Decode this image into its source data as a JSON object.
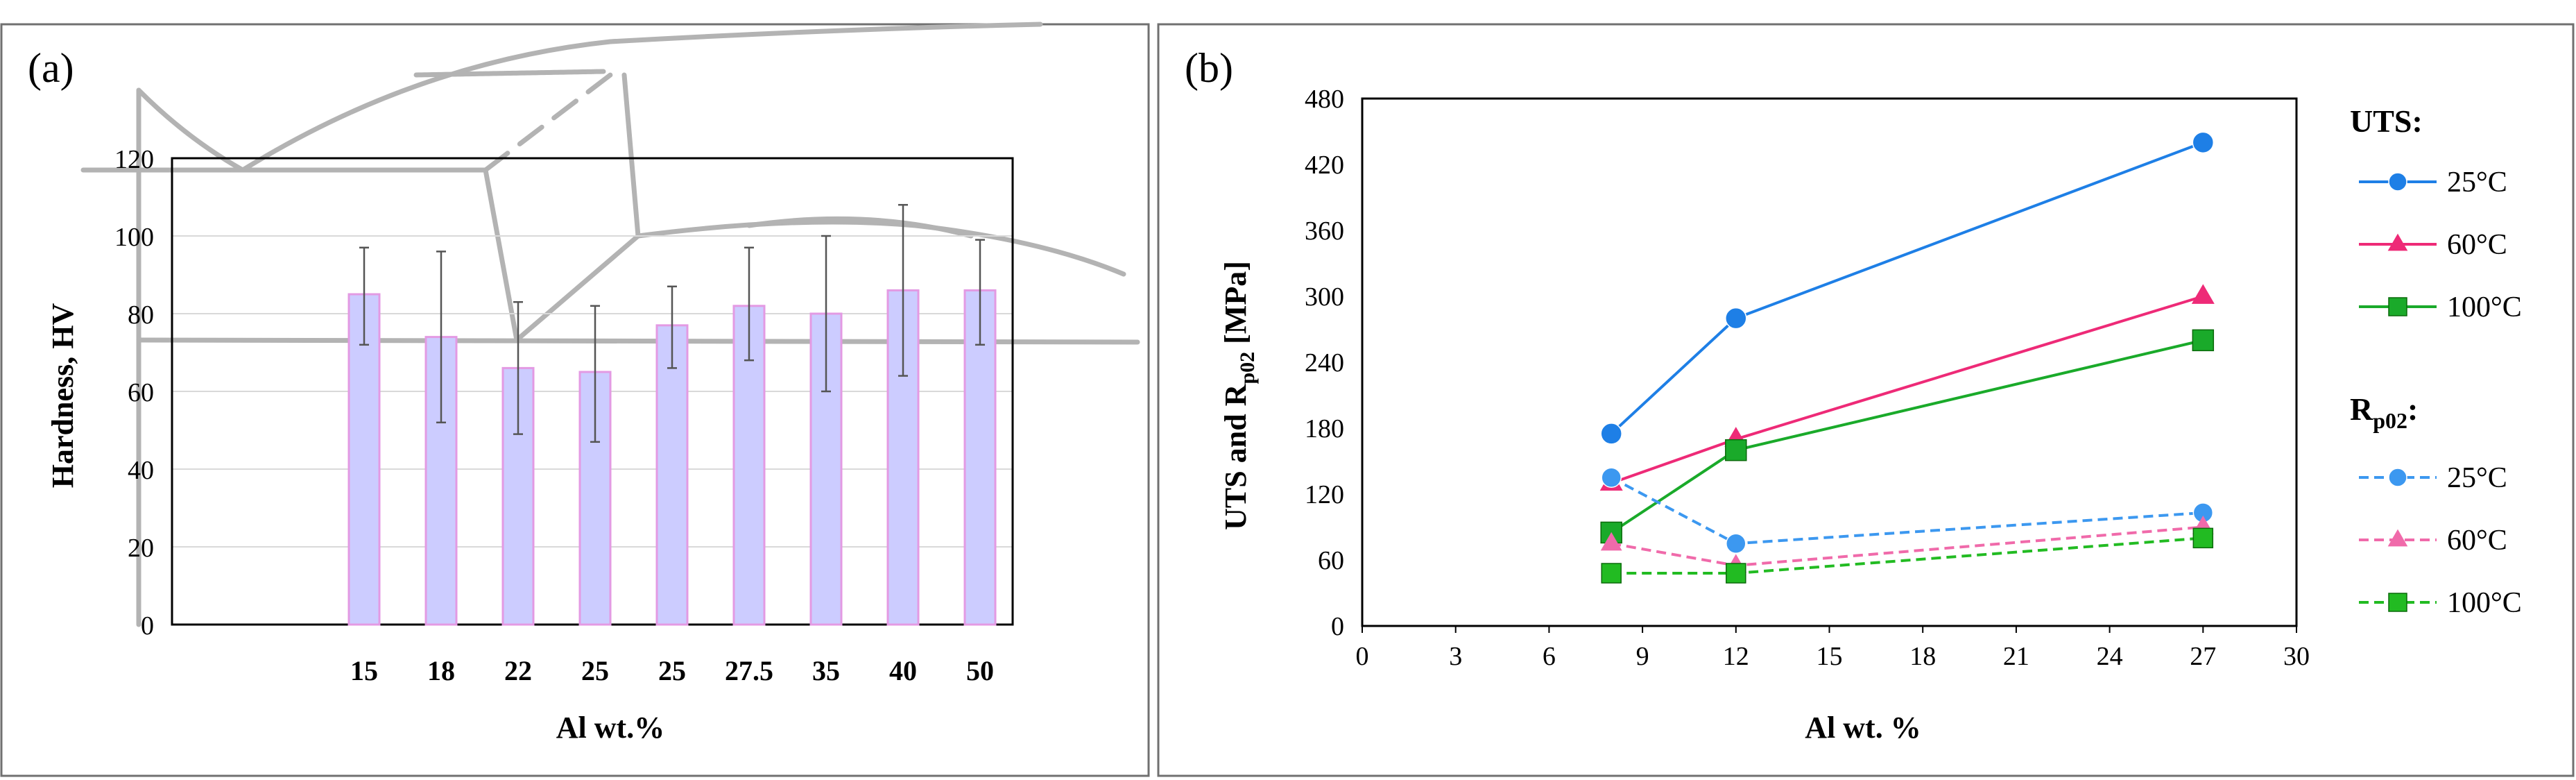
{
  "chart_data": [
    {
      "panel_label": "(a)",
      "type": "bar",
      "ylabel": "Hardness, HV",
      "xlabel": "Al wt.%",
      "ylim": [
        0,
        120
      ],
      "yticks": [
        0,
        20,
        40,
        60,
        80,
        100,
        120
      ],
      "categories": [
        "15",
        "18",
        "22",
        "25",
        "25",
        "27.5",
        "35",
        "40",
        "50"
      ],
      "values": [
        85,
        74,
        66,
        65,
        77,
        82,
        80,
        86,
        86
      ],
      "error_low": [
        72,
        52,
        49,
        47,
        66,
        68,
        60,
        64,
        72
      ],
      "error_high": [
        97,
        96,
        83,
        82,
        87,
        97,
        100,
        108,
        99
      ],
      "colors": {
        "bar_fill": "#ccccff",
        "bar_edge": "#e39ae3",
        "error_bar": "#555555",
        "background_diagram": "#b3b3b3"
      }
    },
    {
      "panel_label": "(b)",
      "type": "line",
      "ylabel_main": "UTS  and  R",
      "ylabel_sub": "p02",
      "ylabel_unit": " [MPa]",
      "xlabel": "Al wt. %",
      "xlim": [
        0,
        30
      ],
      "ylim": [
        0,
        480
      ],
      "xticks": [
        0,
        3,
        6,
        9,
        12,
        15,
        18,
        21,
        24,
        27,
        30
      ],
      "yticks": [
        0,
        60,
        120,
        180,
        240,
        300,
        360,
        420,
        480
      ],
      "x": [
        8,
        12,
        27
      ],
      "legend_groups": [
        {
          "title": "UTS:",
          "title_sub": ""
        },
        {
          "title": "R",
          "title_sub": "p02",
          "title_suffix": ":"
        }
      ],
      "series": [
        {
          "group": 0,
          "name": "25°C",
          "values": [
            175,
            280,
            440
          ],
          "color": "#1e7fe6",
          "marker": "circle",
          "dash": false
        },
        {
          "group": 0,
          "name": "60°C",
          "values": [
            130,
            170,
            300
          ],
          "color": "#ee2a77",
          "marker": "triangle",
          "dash": false
        },
        {
          "group": 0,
          "name": "100°C",
          "values": [
            85,
            160,
            260
          ],
          "color": "#1aaa2a",
          "marker": "square",
          "dash": false
        },
        {
          "group": 1,
          "name": "25°C",
          "values": [
            135,
            75,
            103
          ],
          "color": "#3c98f0",
          "marker": "circle",
          "dash": true
        },
        {
          "group": 1,
          "name": "60°C",
          "values": [
            75,
            55,
            90
          ],
          "color": "#f06aaa",
          "marker": "triangle",
          "dash": true
        },
        {
          "group": 1,
          "name": "100°C",
          "values": [
            48,
            48,
            80
          ],
          "color": "#22bb22",
          "marker": "square",
          "dash": true
        }
      ]
    }
  ]
}
